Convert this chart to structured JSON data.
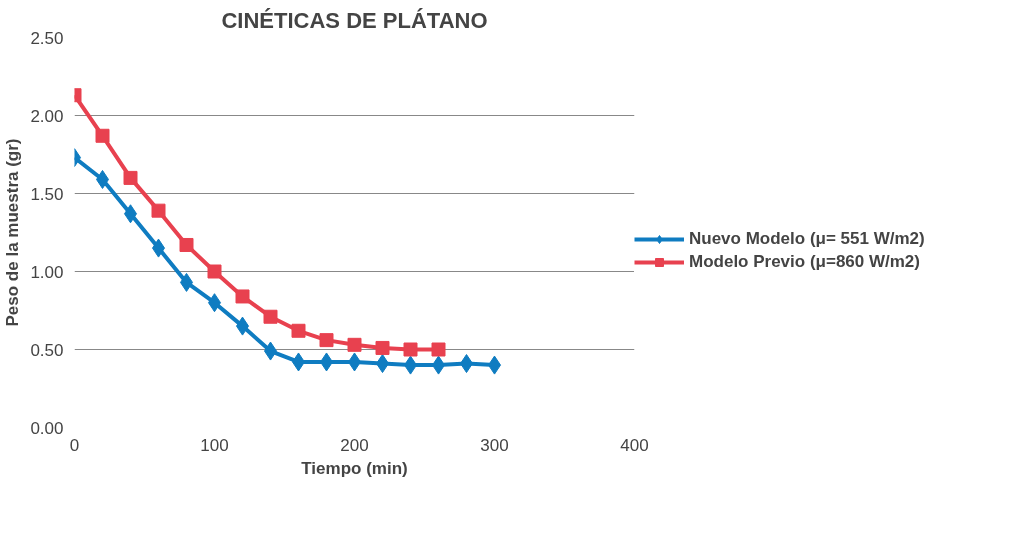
{
  "chart_data": {
    "type": "line",
    "title": "CINÉTICAS DE PLÁTANO",
    "xlabel": "Tiempo (min)",
    "ylabel": "Peso de la muestra (gr)",
    "xlim": [
      0,
      400
    ],
    "xticks": [
      0,
      100,
      200,
      300,
      400
    ],
    "ylim": [
      0,
      2.5
    ],
    "yticks": [
      {
        "value": 0,
        "label": "0.00"
      },
      {
        "value": 0.5,
        "label": "0.50"
      },
      {
        "value": 1,
        "label": "1.00"
      },
      {
        "value": 1.5,
        "label": "1.50"
      },
      {
        "value": 2,
        "label": "2.00"
      },
      {
        "value": 2.5,
        "label": "2.50"
      }
    ],
    "grid": "y",
    "legend": "right",
    "line_style": "solid",
    "series": [
      {
        "name": "Nuevo Modelo (μ= 551 W/m2)",
        "color": "#0f7cc1",
        "marker": "diamond",
        "x": [
          0,
          20,
          40,
          60,
          80,
          100,
          120,
          140,
          160,
          180,
          200,
          220,
          240,
          260,
          280,
          300
        ],
        "values": [
          1.73,
          1.59,
          1.37,
          1.15,
          0.93,
          0.8,
          0.65,
          0.49,
          0.42,
          0.42,
          0.42,
          0.41,
          0.4,
          0.4,
          0.41,
          0.4
        ]
      },
      {
        "name": "Modelo Previo (μ=860 W/m2)",
        "color": "#e8414f",
        "marker": "square",
        "x": [
          0,
          20,
          40,
          60,
          80,
          100,
          120,
          140,
          160,
          180,
          200,
          220,
          240,
          260
        ],
        "values": [
          2.13,
          1.87,
          1.6,
          1.39,
          1.17,
          1.0,
          0.84,
          0.71,
          0.62,
          0.56,
          0.53,
          0.51,
          0.5,
          0.5
        ]
      }
    ]
  }
}
